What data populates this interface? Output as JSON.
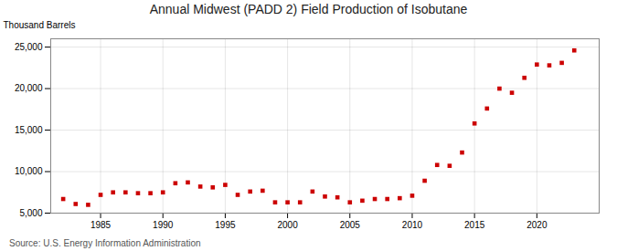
{
  "chart_data": {
    "type": "scatter",
    "title": "Annual Midwest (PADD 2) Field Production of Isobutane",
    "ylabel": "Thousand Barrels",
    "annotations": [
      "Source: U.S. Energy Information Administration"
    ],
    "x": [
      1982,
      1983,
      1984,
      1985,
      1986,
      1987,
      1988,
      1989,
      1990,
      1991,
      1992,
      1993,
      1994,
      1995,
      1996,
      1997,
      1998,
      1999,
      2000,
      2001,
      2002,
      2003,
      2004,
      2005,
      2006,
      2007,
      2008,
      2009,
      2010,
      2011,
      2012,
      2013,
      2014,
      2015,
      2016,
      2017,
      2018,
      2019,
      2020,
      2021,
      2022,
      2023
    ],
    "values": [
      6700,
      6100,
      6000,
      7200,
      7500,
      7500,
      7400,
      7400,
      7500,
      8600,
      8700,
      8200,
      8100,
      8400,
      7200,
      7600,
      7700,
      6300,
      6300,
      6300,
      7600,
      7000,
      6900,
      6300,
      6500,
      6700,
      6700,
      6800,
      7100,
      8900,
      10800,
      10700,
      12300,
      15800,
      17600,
      20000,
      19500,
      21300,
      22900,
      22800,
      23100,
      24600
    ],
    "color": "#cc0000",
    "marker": "square",
    "xlim": [
      1981,
      2025
    ],
    "ylim": [
      5000,
      26000
    ],
    "xticks": [
      1985,
      1990,
      1995,
      2000,
      2005,
      2010,
      2015,
      2020
    ],
    "yticks": [
      {
        "value": 5000,
        "label": "5,000"
      },
      {
        "value": 10000,
        "label": "10,000"
      },
      {
        "value": 15000,
        "label": "15,000"
      },
      {
        "value": 20000,
        "label": "20,000"
      },
      {
        "value": 25000,
        "label": "25,000"
      }
    ],
    "grid": true
  }
}
